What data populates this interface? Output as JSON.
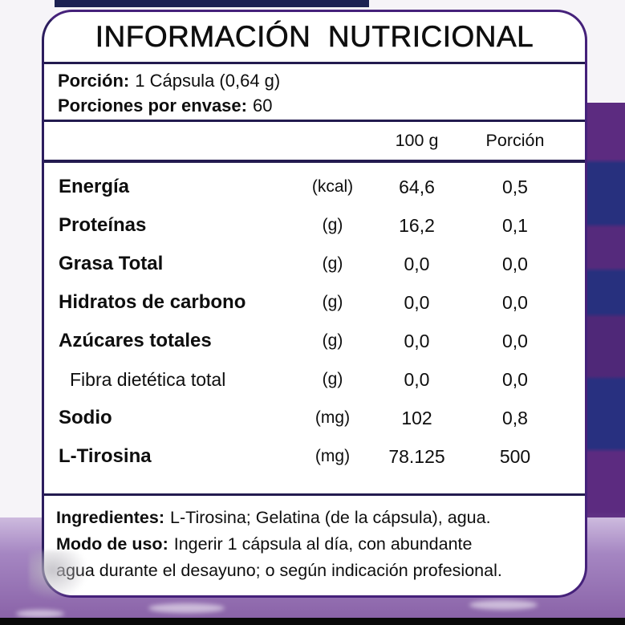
{
  "title": "INFORMACIÓN  NUTRICIONAL",
  "serving": {
    "portion_label": "Porción:",
    "portion_value": "1 Cápsula (0,64 g)",
    "per_container_label": "Porciones por envase:",
    "per_container_value": "60"
  },
  "table": {
    "col_100g": "100 g",
    "col_portion": "Porción",
    "rows": [
      {
        "name": "Energía",
        "unit": "(kcal)",
        "per100": "64,6",
        "portion": "0,5"
      },
      {
        "name": "Proteínas",
        "unit": "(g)",
        "per100": "16,2",
        "portion": "0,1"
      },
      {
        "name": "Grasa Total",
        "unit": "(g)",
        "per100": "0,0",
        "portion": "0,0"
      },
      {
        "name": "Hidratos de carbono",
        "unit": "(g)",
        "per100": "0,0",
        "portion": "0,0"
      },
      {
        "name": "Azúcares totales",
        "unit": "(g)",
        "per100": "0,0",
        "portion": "0,0"
      },
      {
        "name": "Fibra dietética total",
        "unit": "(g)",
        "per100": "0,0",
        "portion": "0,0"
      },
      {
        "name": "Sodio",
        "unit": "(mg)",
        "per100": "102",
        "portion": "0,8"
      },
      {
        "name": "L-Tirosina",
        "unit": "(mg)",
        "per100": "78.125",
        "portion": "500"
      }
    ]
  },
  "footer": {
    "lines": [
      {
        "label": "Ingredientes:",
        "text": "L-Tirosina; Gelatina (de la cápsula), agua."
      },
      {
        "label": "Modo de uso:",
        "text": "Ingerir 1 cápsula al día, con abundante"
      },
      {
        "label": "",
        "text": "agua durante el desayuno; o según indicación profesional."
      }
    ]
  },
  "colors": {
    "border_purple": "#45217a",
    "divider_navy": "#231b50",
    "text": "#0e0e0e",
    "bg_light": "#f6f4f8",
    "strip_purple": "#8a63a8",
    "strip_navy": "#27307e",
    "strip_violet": "#5c2b80",
    "bottom_bar": "#0a0a0a"
  }
}
